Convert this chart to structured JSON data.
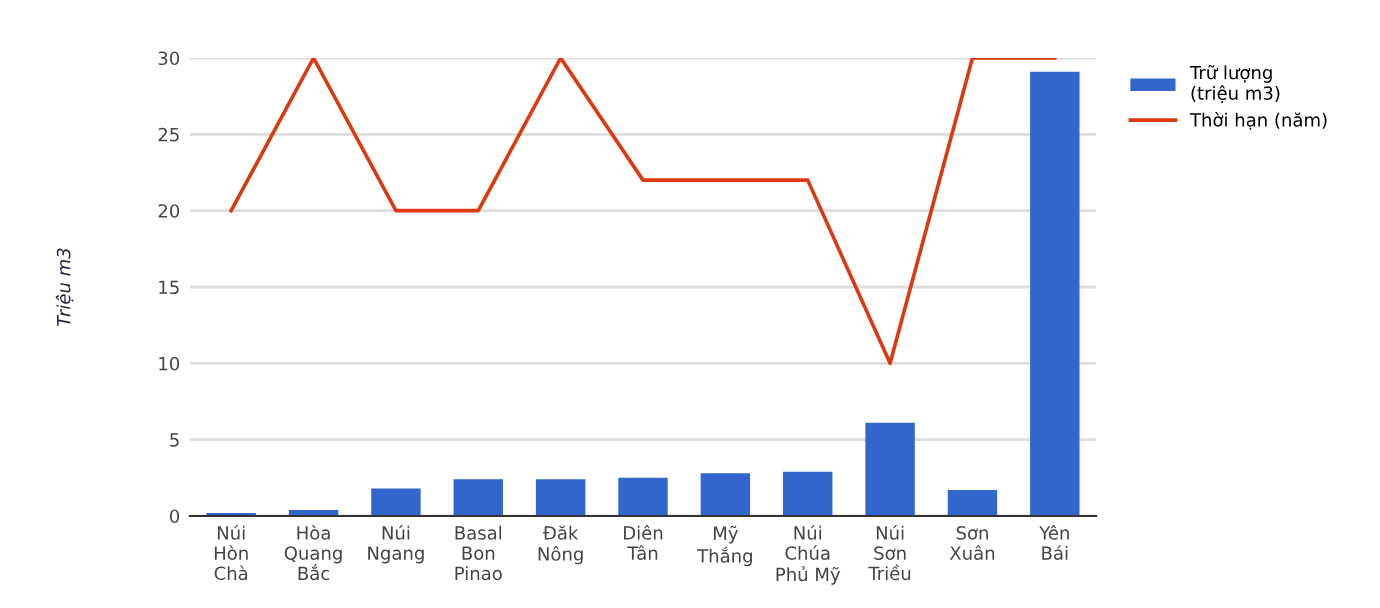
{
  "chart_data": {
    "type": "bar",
    "categories": [
      "Núi Hòn Chà",
      "Hòa Quang Bắc",
      "Núi Ngang",
      "Basal Bon Pinao",
      "Đăk Nông",
      "Diên Tân",
      "Mỹ Thắng",
      "Núi Chúa Phủ Mỹ",
      "Núi Sơn Triều",
      "Sơn Xuân",
      "Yên Bái"
    ],
    "ylabel": "Triệu m3",
    "series": [
      {
        "name": "Trữ lượng (triệu m3)",
        "color": "#3366cc",
        "values": [
          0.2,
          0.4,
          1.8,
          2.4,
          2.4,
          2.5,
          2.8,
          2.9,
          6.1,
          1.7,
          29.1
        ]
      },
      {
        "name": "Thời hạn (năm)",
        "type": "line",
        "color": "#dc3912",
        "values": [
          20,
          30,
          20,
          20,
          30,
          22,
          22,
          22,
          10,
          30,
          30
        ]
      }
    ],
    "ylim": [
      0,
      30
    ],
    "yticks": [
      0,
      5,
      10,
      15,
      20,
      25,
      30
    ],
    "grid": "y",
    "legend": "top right",
    "marker": "none",
    "line_style": "solid"
  }
}
